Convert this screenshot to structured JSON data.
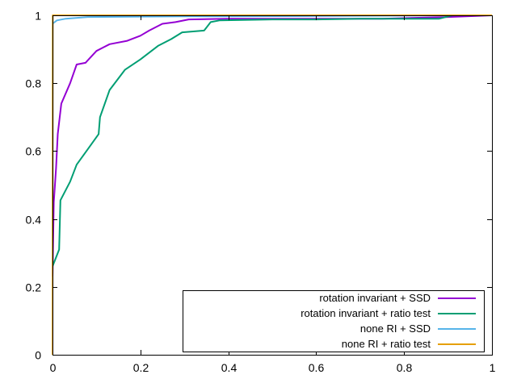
{
  "chart_data": {
    "type": "line",
    "title": "",
    "xlabel": "",
    "ylabel": "",
    "xlim": [
      0,
      1
    ],
    "ylim": [
      0,
      1
    ],
    "grid": false,
    "legend_position": "bottom-right",
    "x_ticks": [
      "0",
      "0.2",
      "0.4",
      "0.6",
      "0.8",
      "1"
    ],
    "y_ticks": [
      "0",
      "0.2",
      "0.4",
      "0.6",
      "0.8",
      "1"
    ],
    "series": [
      {
        "name": "rotation invariant + SSD",
        "color": "#9400d3",
        "points": [
          [
            0,
            0.23
          ],
          [
            0.003,
            0.45
          ],
          [
            0.008,
            0.55
          ],
          [
            0.012,
            0.65
          ],
          [
            0.02,
            0.74
          ],
          [
            0.04,
            0.8
          ],
          [
            0.055,
            0.855
          ],
          [
            0.075,
            0.86
          ],
          [
            0.1,
            0.895
          ],
          [
            0.13,
            0.915
          ],
          [
            0.17,
            0.925
          ],
          [
            0.2,
            0.94
          ],
          [
            0.22,
            0.955
          ],
          [
            0.25,
            0.975
          ],
          [
            0.28,
            0.98
          ],
          [
            0.31,
            0.988
          ],
          [
            0.4,
            0.99
          ],
          [
            0.55,
            0.99
          ],
          [
            0.75,
            0.99
          ],
          [
            0.9,
            0.995
          ],
          [
            1,
            1
          ]
        ]
      },
      {
        "name": "rotation invariant + ratio test",
        "color": "#009e73",
        "points": [
          [
            0,
            0.26
          ],
          [
            0.015,
            0.31
          ],
          [
            0.018,
            0.455
          ],
          [
            0.04,
            0.51
          ],
          [
            0.055,
            0.56
          ],
          [
            0.08,
            0.605
          ],
          [
            0.105,
            0.65
          ],
          [
            0.108,
            0.7
          ],
          [
            0.13,
            0.78
          ],
          [
            0.165,
            0.84
          ],
          [
            0.2,
            0.87
          ],
          [
            0.24,
            0.91
          ],
          [
            0.27,
            0.93
          ],
          [
            0.295,
            0.95
          ],
          [
            0.345,
            0.955
          ],
          [
            0.36,
            0.98
          ],
          [
            0.38,
            0.985
          ],
          [
            0.5,
            0.988
          ],
          [
            0.6,
            0.988
          ],
          [
            0.7,
            0.99
          ],
          [
            0.88,
            0.99
          ],
          [
            0.91,
            1.0
          ],
          [
            1,
            1
          ]
        ]
      },
      {
        "name": "none RI + SSD",
        "color": "#56b4e9",
        "points": [
          [
            0,
            0.975
          ],
          [
            0.01,
            0.985
          ],
          [
            0.03,
            0.99
          ],
          [
            0.08,
            0.995
          ],
          [
            0.3,
            0.997
          ],
          [
            0.6,
            0.998
          ],
          [
            0.9,
            1.0
          ],
          [
            1,
            1
          ]
        ]
      },
      {
        "name": "none RI + ratio test",
        "color": "#e69f00",
        "points": [
          [
            0,
            0.0
          ],
          [
            0.0005,
            1.0
          ],
          [
            1,
            1.0
          ]
        ]
      }
    ]
  }
}
